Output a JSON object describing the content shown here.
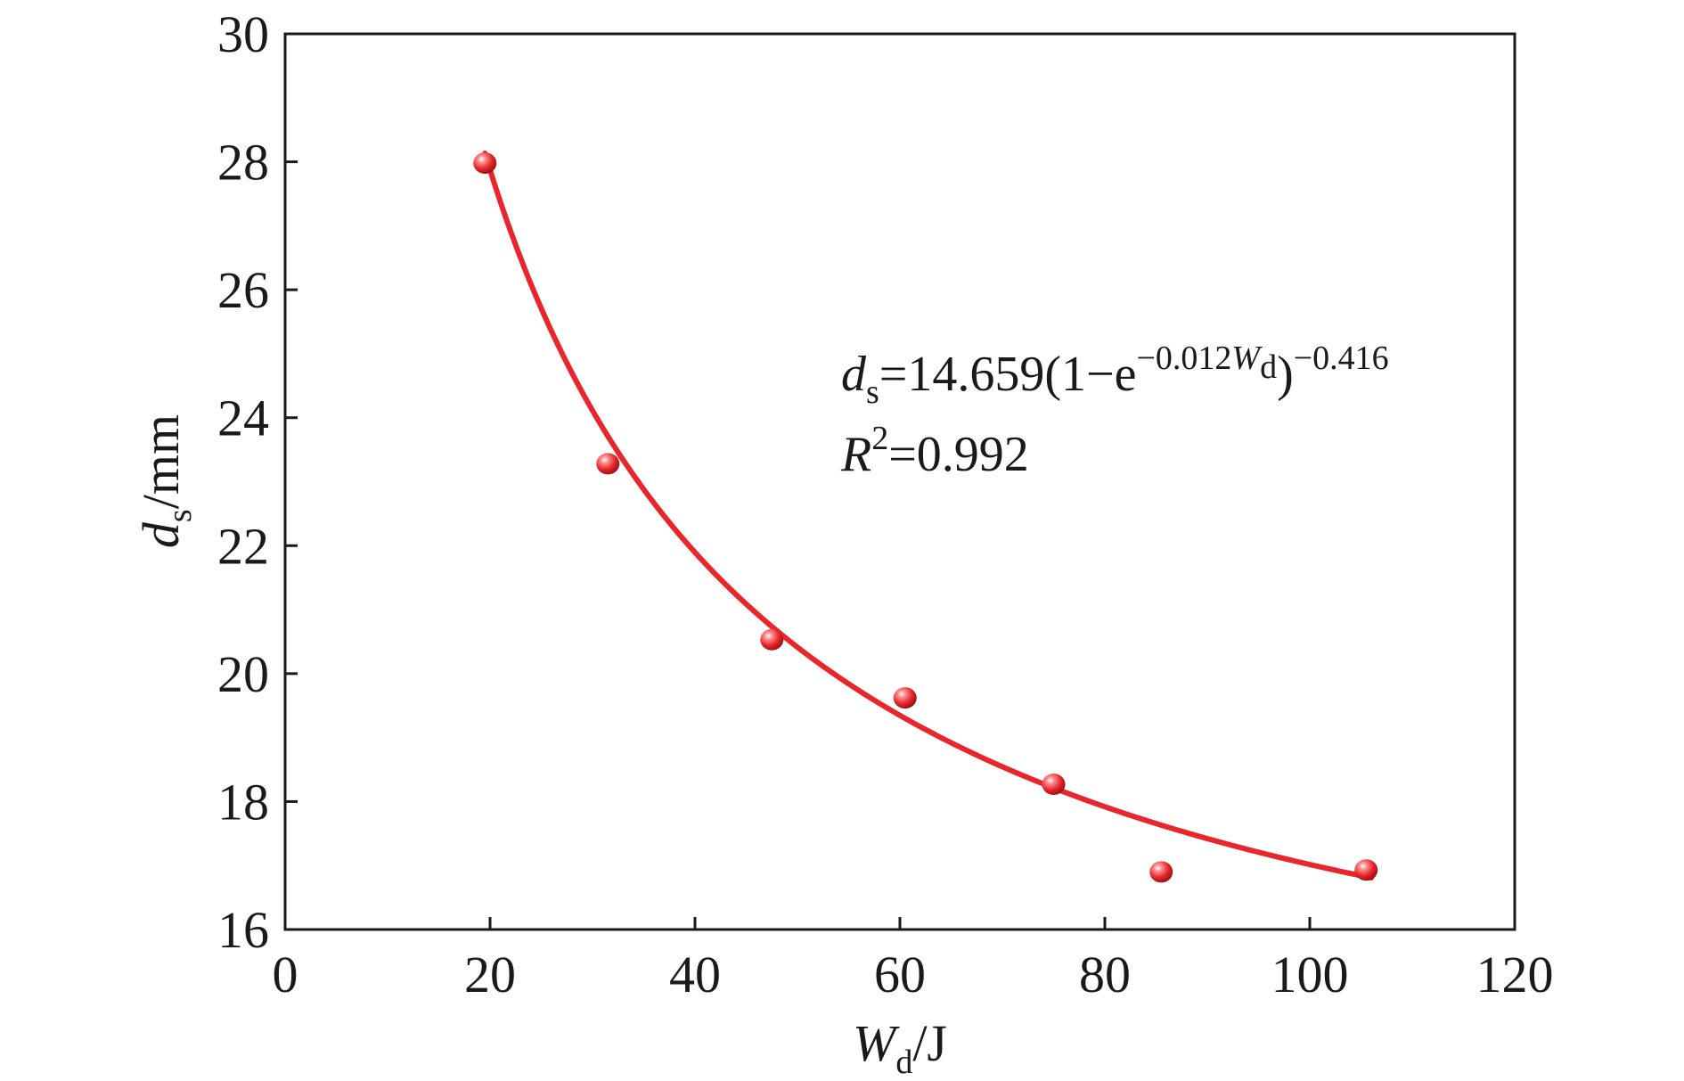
{
  "chart_data": {
    "type": "scatter",
    "xlabel": {
      "main": "W",
      "sub": "d",
      "unit": "/J"
    },
    "ylabel": {
      "main": "d",
      "sub": "s",
      "unit": "/mm"
    },
    "xlim": [
      0,
      120
    ],
    "ylim": [
      16,
      30
    ],
    "xticks": [
      0,
      20,
      40,
      60,
      80,
      100,
      120
    ],
    "yticks": [
      16,
      18,
      20,
      22,
      24,
      26,
      28,
      30
    ],
    "grid": false,
    "series": [
      {
        "x": [
          19.5,
          31.5,
          47.5,
          60.5,
          75.0,
          85.5,
          105.5
        ],
        "y": [
          27.98,
          23.28,
          20.53,
          19.62,
          18.27,
          16.9,
          16.93
        ]
      }
    ],
    "fit": {
      "a": 14.659,
      "b": 0.012,
      "c": 0.416,
      "x_range": [
        19.5,
        106
      ]
    },
    "equation": {
      "lhs": "d",
      "lhs_sub": "s",
      "rhs": "=14.659(1−e",
      "exp": "−0.012",
      "exp_var": "W",
      "exp_sub": "d",
      "close": ")",
      "power": "−0.416"
    },
    "r2": {
      "label": "R",
      "power": "2",
      "value": "=0.992"
    },
    "colors": {
      "curve": "#e8262b",
      "marker": "#e5252a",
      "axis": "#1a1a1a"
    }
  }
}
